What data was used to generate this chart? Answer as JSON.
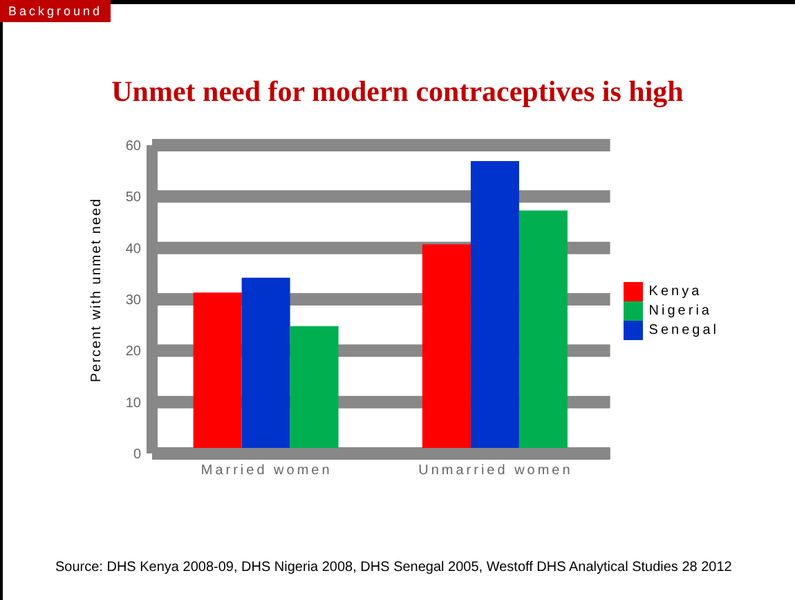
{
  "chart_data": {
    "type": "bar",
    "title": "Unmet need for modern contraceptives is high",
    "ylabel": "Percent with unmet need",
    "categories": [
      "Married women",
      "Unmarried women"
    ],
    "series": [
      {
        "name": "Kenya",
        "color": "#ff0000",
        "values": [
          31.3,
          40.7
        ]
      },
      {
        "name": "Senegal",
        "color": "#0033cc",
        "values": [
          34.2,
          56.9
        ]
      },
      {
        "name": "Nigeria",
        "color": "#00b050",
        "values": [
          24.8,
          47.3
        ]
      }
    ],
    "ylim": [
      0,
      60
    ],
    "yticks": [
      0,
      10,
      20,
      30,
      40,
      50,
      60
    ],
    "grid": "y",
    "legend": "right",
    "annotations": [
      "Background",
      "Source: DHS Kenya 2008-09, DHS Nigeria 2008, DHS Senegal 2005, Westoff  DHS Analytical Studies 28 2012"
    ]
  }
}
